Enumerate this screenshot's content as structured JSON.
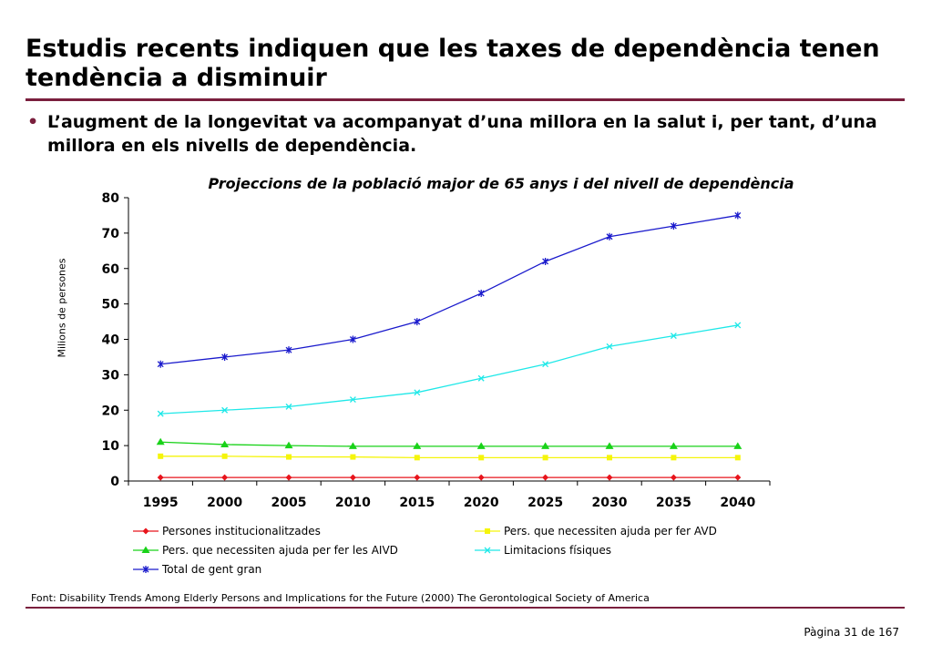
{
  "slide": {
    "title": "Estudis recents indiquen que les taxes de dependència tenen tendència a disminuir",
    "bullet_marker": "•",
    "bullet": "L’augment de la longevitat va acompanyat d’una millora en la salut i, per tant, d’una millora en els nivells de dependència.",
    "source": "Font: Disability Trends Among Elderly Persons and Implications for the Future (2000) The Gerontological Society of America",
    "page": "Pàgina 31 de 167"
  },
  "chart_data": {
    "type": "line",
    "title": "Projeccions de la població major de 65 anys i del nivell de dependència",
    "xlabel": "",
    "ylabel": "Milions de persones",
    "categories": [
      "1995",
      "2000",
      "2005",
      "2010",
      "2015",
      "2020",
      "2025",
      "2030",
      "2035",
      "2040"
    ],
    "ylim": [
      0,
      80
    ],
    "yticks": [
      "0",
      "10",
      "20",
      "30",
      "40",
      "50",
      "60",
      "70",
      "80"
    ],
    "grid": false,
    "legend_position": "bottom",
    "series": [
      {
        "name": "Persones institucionalitzades",
        "color": "#e8141c",
        "marker": "diamond",
        "values": [
          1,
          1,
          1,
          1,
          1,
          1,
          1,
          1,
          1,
          1
        ]
      },
      {
        "name": "Pers. que necessiten ajuda per fer AVD",
        "color": "#f5f50a",
        "marker": "square",
        "values": [
          7,
          7,
          6.8,
          6.8,
          6.6,
          6.6,
          6.6,
          6.6,
          6.6,
          6.6
        ]
      },
      {
        "name": "Pers. que necessiten ajuda per fer les AIVD",
        "color": "#19d219",
        "marker": "triangle",
        "values": [
          11,
          10.3,
          10,
          9.8,
          9.8,
          9.8,
          9.8,
          9.8,
          9.8,
          9.8
        ]
      },
      {
        "name": "Limitacions físiques",
        "color": "#1ee8e8",
        "marker": "x",
        "values": [
          19,
          20,
          21,
          23,
          25,
          29,
          33,
          38,
          41,
          44
        ]
      },
      {
        "name": "Total de gent gran",
        "color": "#1a1acc",
        "marker": "star",
        "values": [
          33,
          35,
          37,
          40,
          45,
          53,
          62,
          69,
          72,
          75
        ]
      }
    ]
  }
}
